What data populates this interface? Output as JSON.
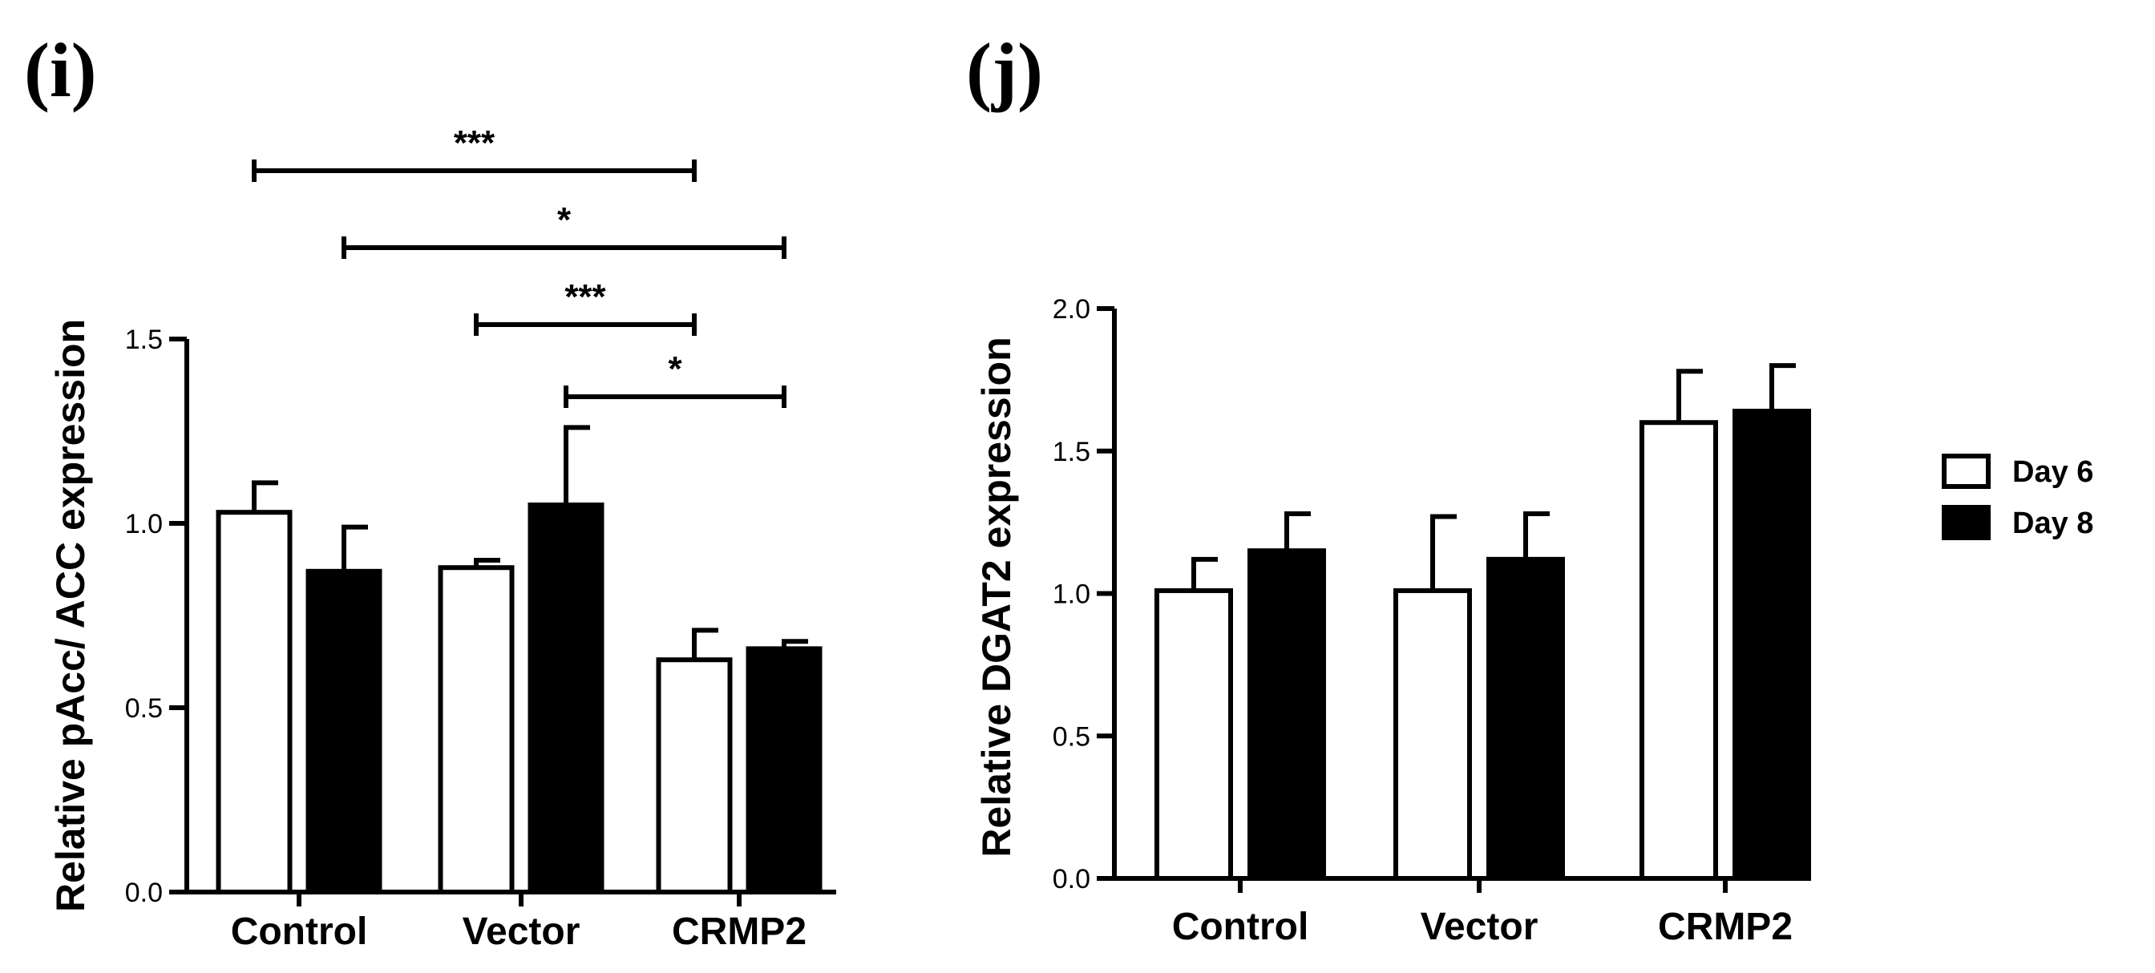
{
  "legend": [
    {
      "label": "Day 6",
      "fill": "#ffffff"
    },
    {
      "label": "Day 8",
      "fill": "#000000"
    }
  ],
  "chart_data": [
    {
      "id": "i",
      "panel_label": "(i)",
      "type": "bar",
      "ylabel": "Relative pAcc/ ACC expression",
      "ylim": [
        0,
        1.5
      ],
      "yticks": [
        "0.0",
        "0.5",
        "1.0",
        "1.5"
      ],
      "categories": [
        "Control",
        "Vector",
        "CRMP2"
      ],
      "series": [
        {
          "name": "Day 6",
          "values": [
            1.03,
            0.88,
            0.63
          ],
          "errors": [
            0.08,
            0.02,
            0.08
          ]
        },
        {
          "name": "Day 8",
          "values": [
            0.87,
            1.05,
            0.66
          ],
          "errors": [
            0.12,
            0.21,
            0.02
          ]
        }
      ],
      "significance": [
        {
          "from": "Control|Day 6",
          "to": "CRMP2|Day 6",
          "label": "***"
        },
        {
          "from": "Control|Day 8",
          "to": "CRMP2|Day 8",
          "label": "*"
        },
        {
          "from": "Vector|Day 6",
          "to": "CRMP2|Day 6",
          "label": "***"
        },
        {
          "from": "Vector|Day 8",
          "to": "CRMP2|Day 8",
          "label": "*"
        }
      ]
    },
    {
      "id": "j",
      "panel_label": "(j)",
      "type": "bar",
      "ylabel": "Relative DGAT2 expression",
      "ylim": [
        0,
        2.0
      ],
      "yticks": [
        "0.0",
        "0.5",
        "1.0",
        "1.5",
        "2.0"
      ],
      "categories": [
        "Control",
        "Vector",
        "CRMP2"
      ],
      "series": [
        {
          "name": "Day 6",
          "values": [
            1.01,
            1.01,
            1.6
          ],
          "errors": [
            0.11,
            0.26,
            0.18
          ]
        },
        {
          "name": "Day 8",
          "values": [
            1.15,
            1.12,
            1.64
          ],
          "errors": [
            0.13,
            0.16,
            0.16
          ]
        }
      ],
      "significance": []
    }
  ]
}
